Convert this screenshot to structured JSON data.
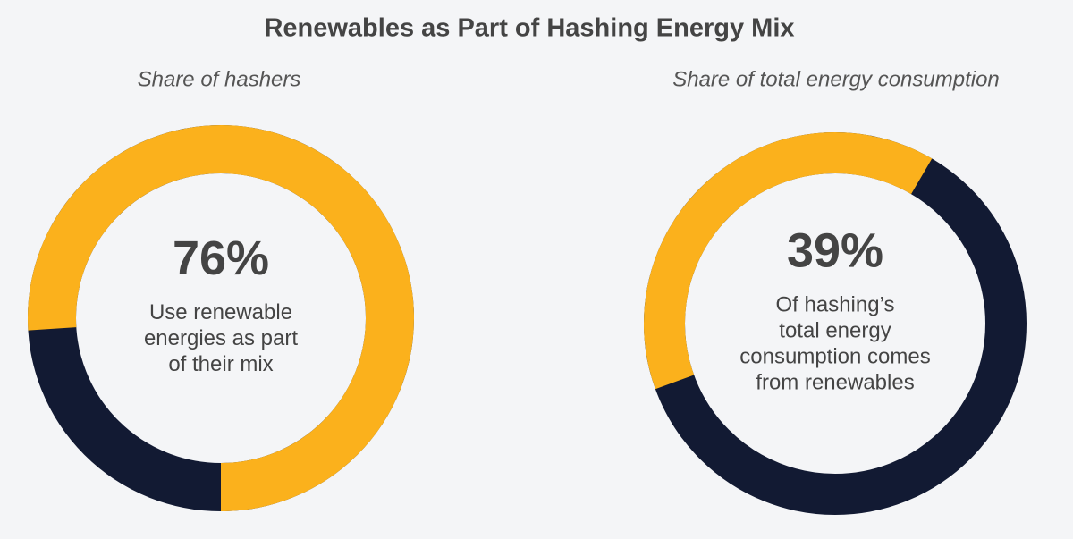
{
  "title": "Renewables as Part of Hashing Energy Mix",
  "chart_data": [
    {
      "type": "donut",
      "subtitle": "Share of hashers",
      "value": 76,
      "value_label": "76%",
      "description": [
        "Use renewable",
        "energies as part",
        "of their mix"
      ],
      "color": "#fbb11c",
      "track_color": "#121a33"
    },
    {
      "type": "donut",
      "subtitle": "Share of total energy consumption",
      "value": 39,
      "value_label": "39%",
      "description": [
        "Of hashing’s",
        "total energy",
        "consumption comes",
        "from renewables"
      ],
      "color": "#fbb11c",
      "track_color": "#121a33"
    }
  ]
}
